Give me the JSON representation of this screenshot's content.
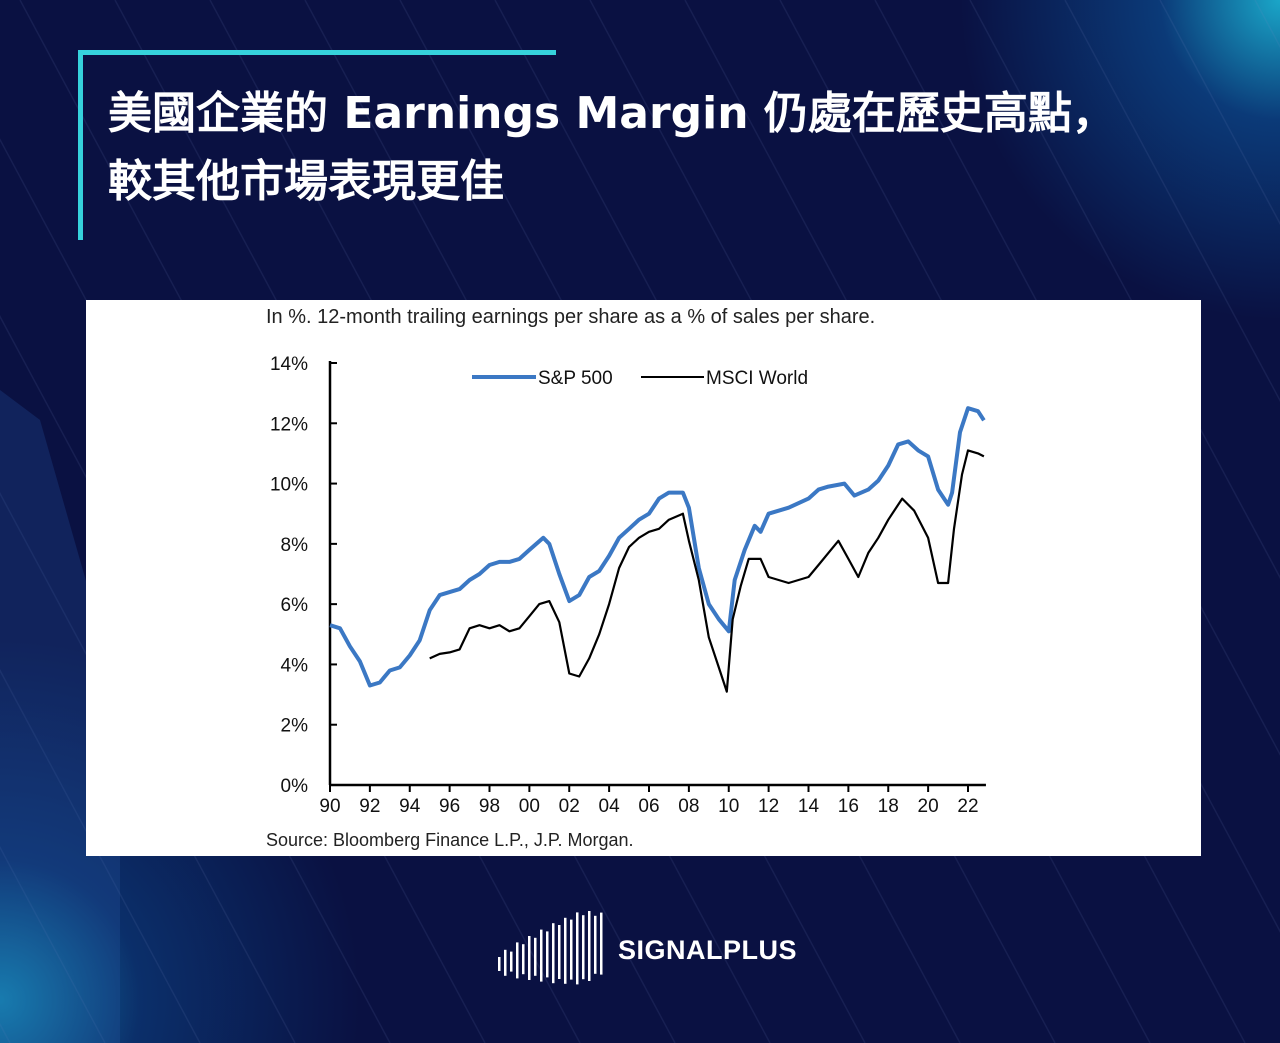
{
  "title": {
    "line1": "美國企業的 Earnings Margin 仍處在歷史高點，",
    "line2": "較其他市場表現更佳"
  },
  "brand": {
    "name": "SIGNALPLUS"
  },
  "colors": {
    "background": "#0a1142",
    "accent": "#36d2dc",
    "sp500": "#3b78c4",
    "msci": "#000000"
  },
  "chart_data": {
    "type": "line",
    "subtitle": "In %. 12-month trailing earnings per share as a % of sales per share.",
    "source": "Source: Bloomberg Finance L.P., J.P. Morgan.",
    "xlabel": "",
    "ylabel": "",
    "xlim": [
      1990,
      2023
    ],
    "ylim": [
      0,
      14
    ],
    "x_ticks": [
      "90",
      "92",
      "94",
      "96",
      "98",
      "00",
      "02",
      "04",
      "06",
      "08",
      "10",
      "12",
      "14",
      "16",
      "18",
      "20",
      "22"
    ],
    "y_ticks": [
      "0%",
      "2%",
      "4%",
      "6%",
      "8%",
      "10%",
      "12%",
      "14%"
    ],
    "legend_position": "top-center",
    "grid": false,
    "series": [
      {
        "name": "S&P 500",
        "x": [
          1990,
          1990.5,
          1991,
          1991.5,
          1992,
          1992.5,
          1993,
          1993.5,
          1994,
          1994.5,
          1995,
          1995.5,
          1996,
          1996.5,
          1997,
          1997.5,
          1998,
          1998.5,
          1999,
          1999.5,
          2000,
          2000.7,
          2001,
          2001.5,
          2002,
          2002.5,
          2003,
          2003.5,
          2004,
          2004.5,
          2005,
          2005.5,
          2006,
          2006.5,
          2007,
          2007.7,
          2008,
          2008.5,
          2009,
          2009.5,
          2010,
          2010.3,
          2010.8,
          2011.3,
          2011.6,
          2012,
          2012.5,
          2013,
          2014,
          2014.5,
          2015,
          2015.8,
          2016.3,
          2017,
          2017.5,
          2018,
          2018.5,
          2019,
          2019.5,
          2020,
          2020.5,
          2021,
          2021.2,
          2021.6,
          2022,
          2022.5,
          2022.8
        ],
        "y": [
          5.3,
          5.2,
          4.6,
          4.1,
          3.3,
          3.4,
          3.8,
          3.9,
          4.3,
          4.8,
          5.8,
          6.3,
          6.4,
          6.5,
          6.8,
          7.0,
          7.3,
          7.4,
          7.4,
          7.5,
          7.8,
          8.2,
          8.0,
          7.0,
          6.1,
          6.3,
          6.9,
          7.1,
          7.6,
          8.2,
          8.5,
          8.8,
          9.0,
          9.5,
          9.7,
          9.7,
          9.2,
          7.2,
          6.0,
          5.5,
          5.1,
          6.8,
          7.8,
          8.6,
          8.4,
          9.0,
          9.1,
          9.2,
          9.5,
          9.8,
          9.9,
          10.0,
          9.6,
          9.8,
          10.1,
          10.6,
          11.3,
          11.4,
          11.1,
          10.9,
          9.8,
          9.3,
          9.7,
          11.7,
          12.5,
          12.4,
          12.1
        ]
      },
      {
        "name": "MSCI World",
        "x": [
          1995,
          1995.5,
          1996,
          1996.5,
          1997,
          1997.5,
          1998,
          1998.5,
          1999,
          1999.5,
          2000,
          2000.5,
          2001,
          2001.5,
          2002,
          2002.5,
          2003,
          2003.5,
          2004,
          2004.5,
          2005,
          2005.5,
          2006,
          2006.5,
          2007,
          2007.7,
          2008,
          2008.5,
          2009,
          2009.5,
          2009.9,
          2010.2,
          2010.6,
          2011,
          2011.6,
          2012,
          2013,
          2014,
          2014.5,
          2015,
          2015.5,
          2016,
          2016.5,
          2017,
          2017.5,
          2018,
          2018.7,
          2019.3,
          2020,
          2020.5,
          2021,
          2021.3,
          2021.7,
          2022,
          2022.5,
          2022.8
        ],
        "y": [
          4.2,
          4.35,
          4.4,
          4.5,
          5.2,
          5.3,
          5.2,
          5.3,
          5.1,
          5.2,
          5.6,
          6.0,
          6.1,
          5.4,
          3.7,
          3.6,
          4.2,
          5.0,
          6.0,
          7.2,
          7.9,
          8.2,
          8.4,
          8.5,
          8.8,
          9.0,
          8.1,
          6.8,
          4.9,
          3.9,
          3.1,
          5.5,
          6.6,
          7.5,
          7.5,
          6.9,
          6.7,
          6.9,
          7.3,
          7.7,
          8.1,
          7.5,
          6.9,
          7.7,
          8.2,
          8.8,
          9.5,
          9.1,
          8.2,
          6.7,
          6.7,
          8.5,
          10.3,
          11.1,
          11.0,
          10.9
        ]
      }
    ]
  }
}
